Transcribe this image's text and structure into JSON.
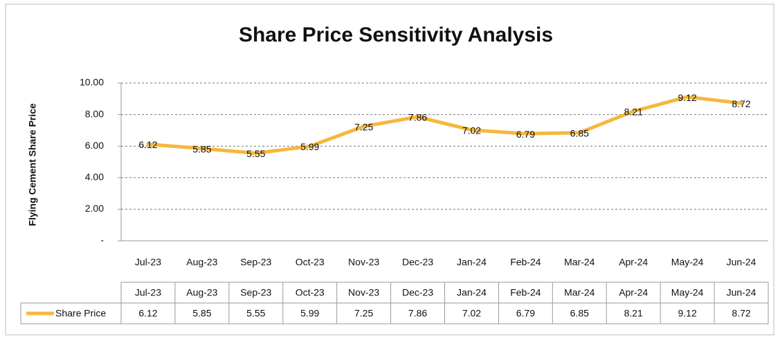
{
  "chart_data": {
    "type": "line",
    "title": "Share Price Sensitivity Analysis",
    "y_label": "Flying Cement Share Price",
    "categories": [
      "Jul-23",
      "Aug-23",
      "Sep-23",
      "Oct-23",
      "Nov-23",
      "Dec-23",
      "Jan-24",
      "Feb-24",
      "Mar-24",
      "Apr-24",
      "May-24",
      "Jun-24"
    ],
    "series": [
      {
        "name": "Share Price",
        "color": "#f6b73c",
        "values": [
          6.12,
          5.85,
          5.55,
          5.99,
          7.25,
          7.86,
          7.02,
          6.79,
          6.85,
          8.21,
          9.12,
          8.72
        ]
      }
    ],
    "ylim": [
      0,
      10
    ],
    "yticks": [
      {
        "value": 0,
        "label": "-"
      },
      {
        "value": 2,
        "label": "2.00"
      },
      {
        "value": 4,
        "label": "4.00"
      },
      {
        "value": 6,
        "label": "6.00"
      },
      {
        "value": 8,
        "label": "8.00"
      },
      {
        "value": 10,
        "label": "10.00"
      }
    ],
    "grid": true,
    "data_table": true
  }
}
